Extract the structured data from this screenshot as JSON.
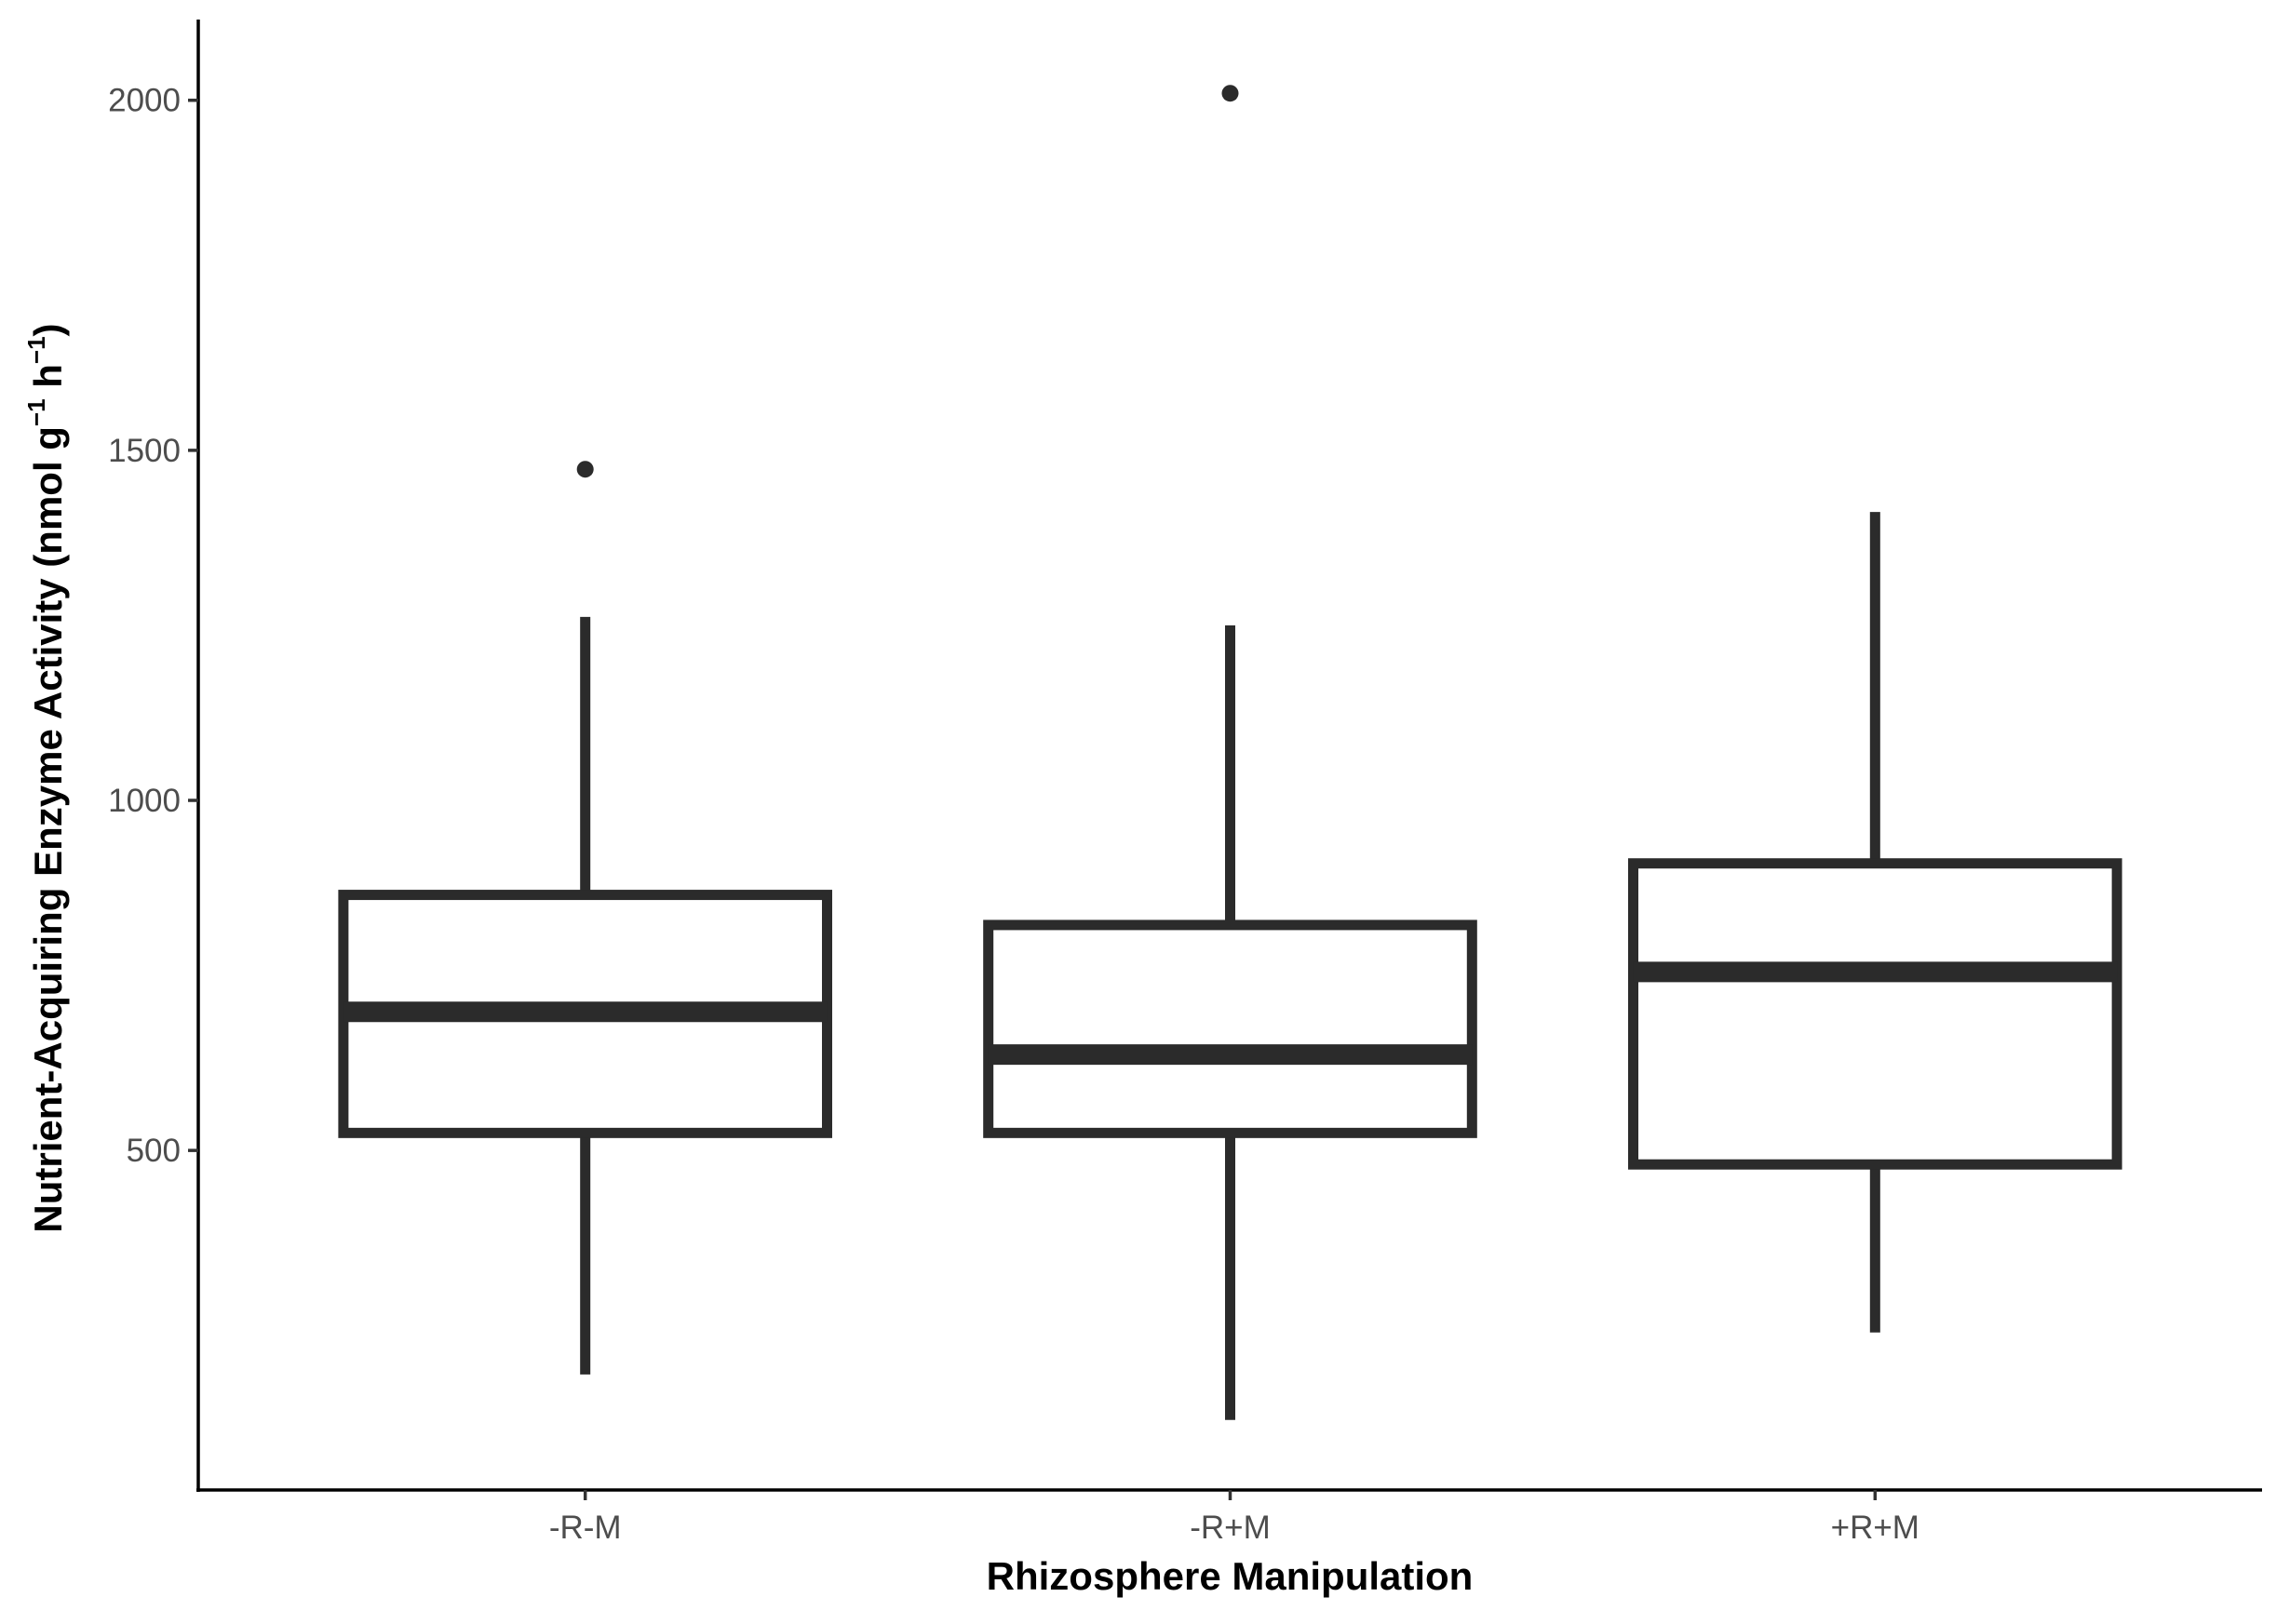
{
  "chart_data": {
    "type": "box",
    "title": "",
    "xlabel": "Rhizosphere Manipulation",
    "ylabel": {
      "text": "Nutrient-Acquiring Enzyme Activity (nmol g",
      "sup1": "−1",
      "unit2": " h",
      "sup2": "−1",
      "close": ")"
    },
    "categories": [
      "-R-M",
      "-R+M",
      "+R+M"
    ],
    "ylim": [
      15,
      2110
    ],
    "yticks": [
      500,
      1000,
      1500,
      2000
    ],
    "ytick_labels": [
      "500",
      "1000",
      "1500",
      "2000"
    ],
    "grid": false,
    "legend": "none",
    "boxes": [
      {
        "category": "-R-M",
        "whisker_low": 180,
        "q1": 525,
        "median": 698,
        "q3": 865,
        "whisker_high": 1262,
        "outliers": [
          1473
        ]
      },
      {
        "category": "-R+M",
        "whisker_low": 115,
        "q1": 525,
        "median": 637,
        "q3": 822,
        "whisker_high": 1250,
        "outliers": [
          2010
        ]
      },
      {
        "category": "+R+M",
        "whisker_low": 240,
        "q1": 480,
        "median": 755,
        "q3": 910,
        "whisker_high": 1412,
        "outliers": []
      }
    ],
    "colors": {
      "box_line": "#2b2b2b",
      "box_fill": "#ffffff",
      "axis_line": "#000000",
      "tick_text": "#4d4d4d"
    }
  }
}
